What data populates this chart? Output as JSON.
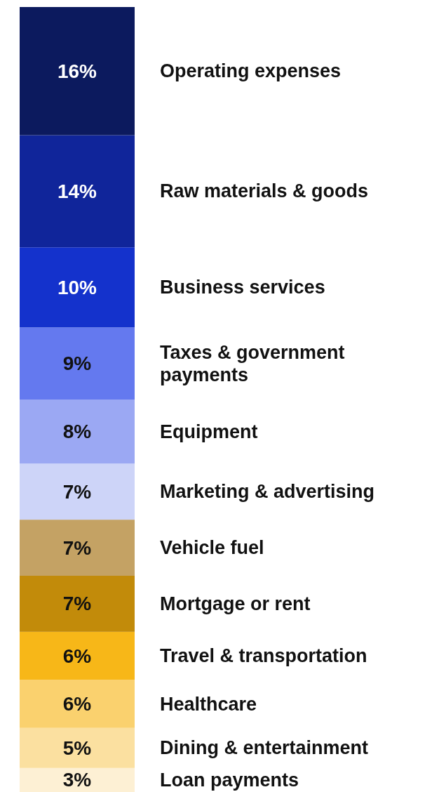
{
  "chart_data": {
    "type": "bar",
    "stacked": true,
    "categories": [
      null
    ],
    "ylim": [
      0,
      98
    ],
    "series": [
      {
        "name": "Loan payments",
        "color": "#fdf0d4",
        "values": [
          3
        ],
        "value_labels": [
          "3%"
        ]
      },
      {
        "name": "Dining & entertainment",
        "color": "#fbe0a0",
        "values": [
          5
        ],
        "value_labels": [
          "5%"
        ]
      },
      {
        "name": "Healthcare",
        "color": "#fad16e",
        "values": [
          6
        ],
        "value_labels": [
          "6%"
        ]
      },
      {
        "name": "Travel & transportation",
        "color": "#f7b718",
        "values": [
          6
        ],
        "value_labels": [
          "6%"
        ]
      },
      {
        "name": "Mortgage or rent",
        "color": "#c28b0a",
        "values": [
          7
        ],
        "value_labels": [
          "7%"
        ]
      },
      {
        "name": "Vehicle fuel",
        "color": "#c4a264",
        "values": [
          7
        ],
        "value_labels": [
          "7%"
        ]
      },
      {
        "name": "Marketing & advertising",
        "color": "#cdd4f8",
        "values": [
          7
        ],
        "value_labels": [
          "7%"
        ]
      },
      {
        "name": "Equipment",
        "color": "#9ba8f3",
        "values": [
          8
        ],
        "value_labels": [
          "8%"
        ]
      },
      {
        "name": "Taxes & government payments",
        "color": "#6479ef",
        "values": [
          9
        ],
        "value_labels": [
          "9%"
        ]
      },
      {
        "name": "Business services",
        "color": "#1432cc",
        "values": [
          10
        ],
        "value_labels": [
          "10%"
        ]
      },
      {
        "name": "Raw materials &  goods",
        "color": "#10259a",
        "values": [
          14
        ],
        "value_labels": [
          "14%"
        ]
      },
      {
        "name": "Operating expenses",
        "color": "#0c1a5e",
        "values": [
          16
        ],
        "value_labels": [
          "16%"
        ]
      }
    ]
  }
}
